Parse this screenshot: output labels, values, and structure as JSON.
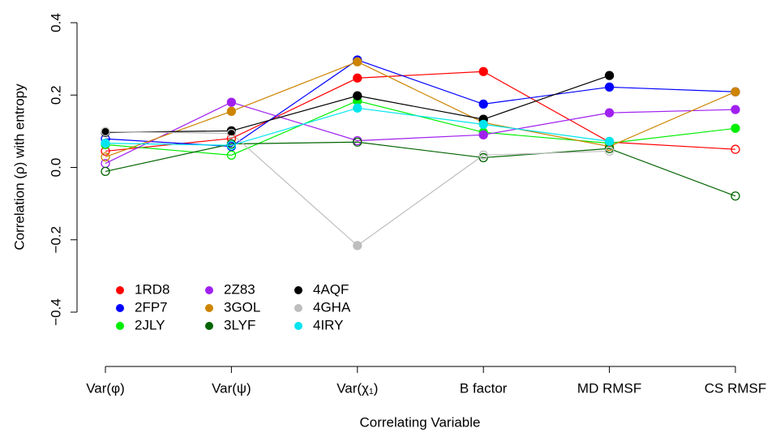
{
  "chart_data": {
    "type": "line",
    "x_label": "Correlating Variable",
    "y_label": "Correlation (ρ) with entropy",
    "categories": [
      "Var(φ)",
      "Var(ψ)",
      "Var(χ₁)",
      "B factor",
      "MD RMSF",
      "CS RMSF"
    ],
    "ylim": [
      -0.4,
      0.4
    ],
    "yticks": [
      {
        "value": -0.4,
        "label": "−0.4"
      },
      {
        "value": -0.2,
        "label": "−0.2"
      },
      {
        "value": 0,
        "label": "0.0"
      },
      0.2,
      0.4
    ],
    "legend": "bottom-left",
    "series": [
      {
        "name": "1RD8",
        "color": "#ff0000",
        "values": [
          0.045,
          0.08,
          0.247,
          0.265,
          0.07,
          0.05
        ],
        "filled": [
          false,
          false,
          true,
          true,
          false,
          false
        ]
      },
      {
        "name": "2FP7",
        "color": "#0000ff",
        "values": [
          0.079,
          0.058,
          0.297,
          0.175,
          0.222,
          0.209
        ],
        "filled": [
          false,
          false,
          true,
          true,
          true,
          true
        ]
      },
      {
        "name": "2JLY",
        "color": "#00ee00",
        "values": [
          0.063,
          0.034,
          0.184,
          0.097,
          0.067,
          0.108
        ],
        "filled": [
          false,
          false,
          true,
          true,
          false,
          true
        ]
      },
      {
        "name": "2Z83",
        "color": "#a020f0",
        "values": [
          0.011,
          0.18,
          0.074,
          0.09,
          0.151,
          0.16
        ],
        "filled": [
          false,
          true,
          false,
          true,
          true,
          true
        ]
      },
      {
        "name": "3GOL",
        "color": "#cd8500",
        "values": [
          0.029,
          0.155,
          0.292,
          0.124,
          0.058,
          0.209
        ],
        "filled": [
          false,
          true,
          true,
          true,
          false,
          true
        ]
      },
      {
        "name": "3LYF",
        "color": "#006400",
        "values": [
          -0.011,
          0.065,
          0.07,
          0.027,
          0.052,
          -0.079
        ],
        "filled": [
          false,
          false,
          false,
          false,
          false,
          false
        ]
      },
      {
        "name": "4AQF",
        "color": "#000000",
        "values": [
          0.097,
          0.101,
          0.198,
          0.133,
          0.254,
          null
        ],
        "filled": [
          true,
          true,
          true,
          true,
          true,
          null
        ]
      },
      {
        "name": "4GHA",
        "color": "#bebebe",
        "values": [
          0.099,
          0.094,
          -0.216,
          0.034,
          0.045,
          null
        ],
        "filled": [
          false,
          false,
          true,
          false,
          false,
          null
        ]
      },
      {
        "name": "4IRY",
        "color": "#00e5ee",
        "values": [
          0.067,
          0.061,
          0.164,
          0.119,
          0.072,
          null
        ],
        "filled": [
          true,
          false,
          true,
          true,
          true,
          null
        ]
      }
    ]
  }
}
